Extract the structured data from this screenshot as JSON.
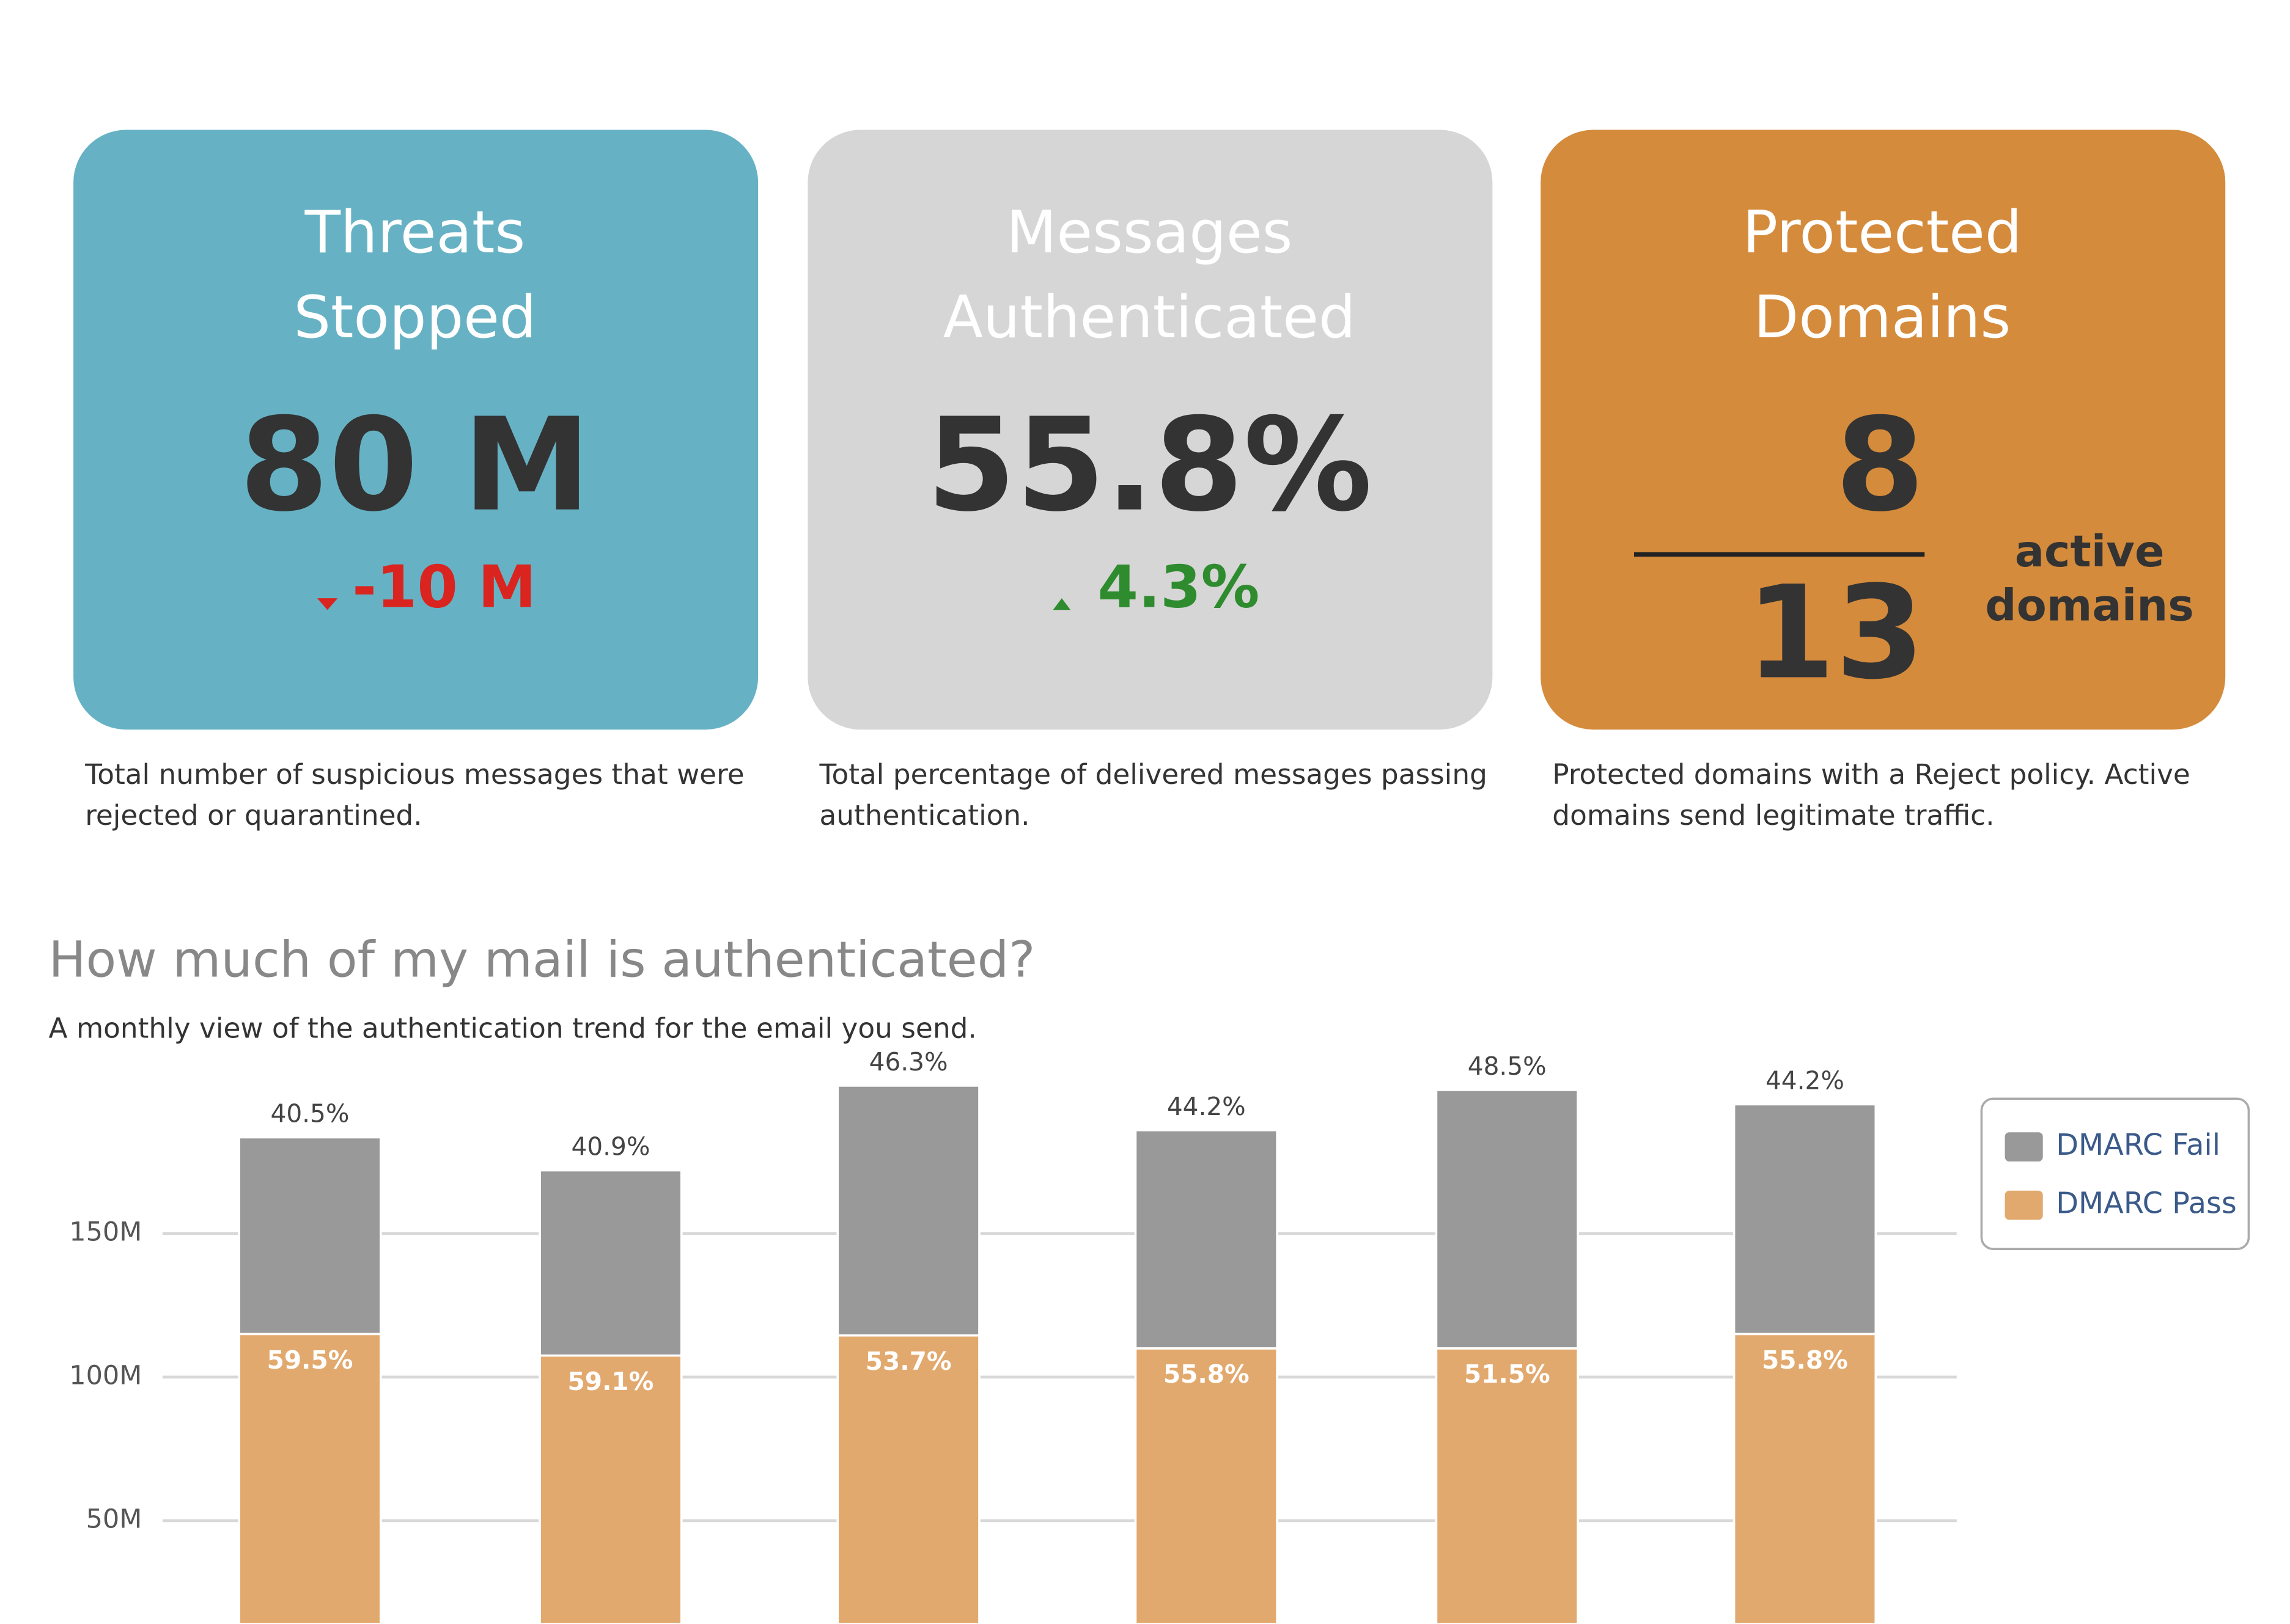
{
  "cards": [
    {
      "title_lines": [
        "Threats",
        "Stopped"
      ],
      "value": "80 M",
      "change": "-10 M",
      "change_direction": "down",
      "color": "#66b2c4",
      "description_lines": [
        "Total number of suspicious messages that were",
        "rejected or quarantined."
      ]
    },
    {
      "title_lines": [
        "Messages",
        "Authenticated"
      ],
      "value": "55.8%",
      "change": "4.3%",
      "change_direction": "up",
      "color": "#d6d6d6",
      "description_lines": [
        "Total percentage of delivered messages passing",
        "authentication."
      ]
    },
    {
      "title_lines": [
        "Protected",
        "Domains"
      ],
      "numerator": "8",
      "denominator": "13",
      "unit_lines": [
        "active",
        "domains"
      ],
      "color": "#d58b3c",
      "description_lines": [
        "Protected domains with a Reject policy. Active",
        "domains send legitimate traffic."
      ]
    }
  ],
  "chart_data": {
    "type": "stacked_bar",
    "title": "How much of my mail is authenticated?",
    "subtitle": "A monthly view of the authentication trend for the email you send.",
    "categories": [
      null,
      null,
      null,
      null,
      null,
      null
    ],
    "series": [
      {
        "name": "DMARC Pass",
        "color": "#e2a96e",
        "values": [
          101,
          93.5,
          100.5,
          96,
          96,
          101
        ],
        "data_labels": [
          "59.5%",
          "59.1%",
          "53.7%",
          "55.8%",
          "51.5%",
          "55.8%"
        ]
      },
      {
        "name": "DMARC Fail",
        "color": "#999999",
        "values": [
          68.5,
          64.5,
          87,
          76,
          90,
          80
        ],
        "data_labels": [
          "40.5%",
          "40.9%",
          "46.3%",
          "44.2%",
          "48.5%",
          "44.2%"
        ]
      }
    ],
    "ylim": [
      14,
      200
    ],
    "yticks": [
      {
        "value": 50,
        "label": "50M"
      },
      {
        "value": 100,
        "label": "100M"
      },
      {
        "value": 150,
        "label": "150M"
      }
    ],
    "grid": true,
    "legend": "top-right"
  }
}
